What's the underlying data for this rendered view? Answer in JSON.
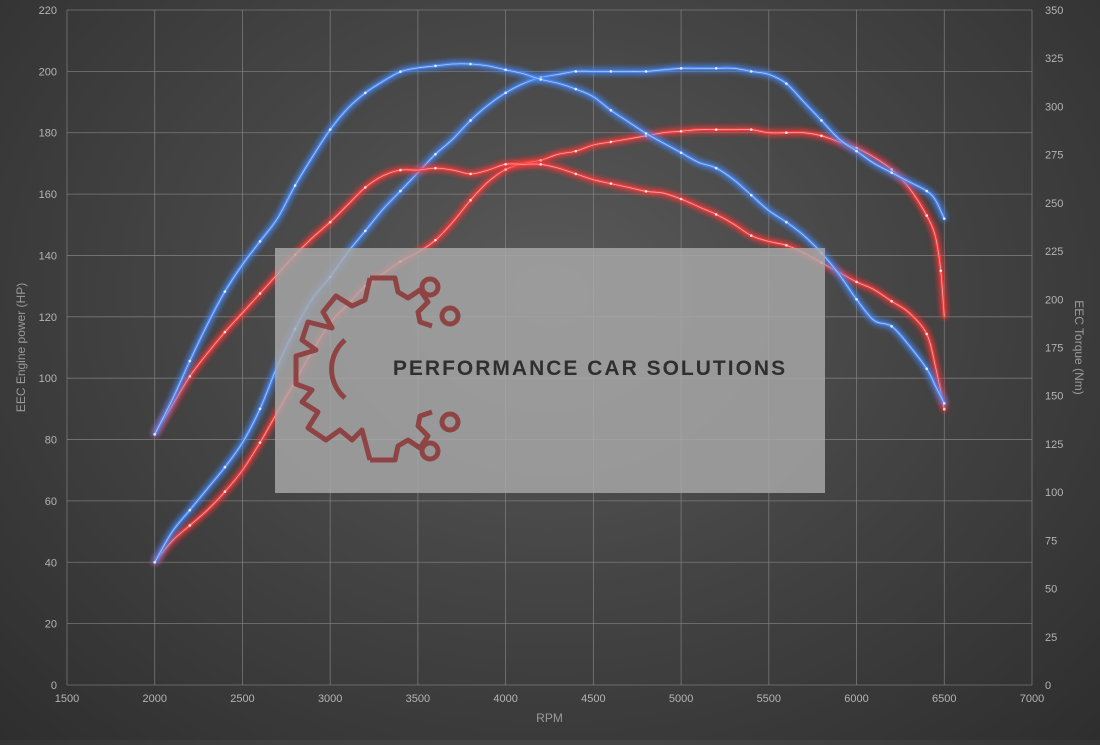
{
  "watermark": {
    "text": "PERFORMANCE CAR SOLUTIONS"
  },
  "chart_data": {
    "type": "line",
    "title": "",
    "xlabel": "RPM",
    "ylabel": "EEC Engine power (HP)",
    "y2label": "EEC Torque (Nm)",
    "xlim": [
      1500,
      7000
    ],
    "ylim": [
      0,
      220
    ],
    "y2lim": [
      0,
      350
    ],
    "x_ticks": [
      1500,
      2000,
      2500,
      3000,
      3500,
      4000,
      4500,
      5000,
      5500,
      6000,
      6500,
      7000
    ],
    "y_ticks": [
      0,
      20,
      40,
      60,
      80,
      100,
      120,
      140,
      160,
      180,
      200,
      220
    ],
    "y2_ticks": [
      0,
      25,
      50,
      75,
      100,
      125,
      150,
      175,
      200,
      225,
      250,
      275,
      300,
      325,
      350
    ],
    "grid": true,
    "legend": "none",
    "series": [
      {
        "color": "#ff3b3b",
        "axis": "left",
        "x": [
          2000,
          2100,
          2200,
          2300,
          2400,
          2500,
          2600,
          2700,
          2800,
          2900,
          3000,
          3100,
          3200,
          3300,
          3400,
          3500,
          3600,
          3700,
          3800,
          3900,
          4000,
          4100,
          4200,
          4300,
          4400,
          4500,
          4600,
          4700,
          4800,
          4900,
          5000,
          5100,
          5200,
          5300,
          5400,
          5500,
          5600,
          5700,
          5800,
          5900,
          6000,
          6100,
          6200,
          6300,
          6400,
          6450,
          6480,
          6500
        ],
        "values": [
          40,
          47,
          52,
          57,
          63,
          70,
          79,
          89,
          99,
          109,
          118,
          124,
          130,
          134,
          138,
          141,
          145,
          151,
          158,
          164,
          168,
          170,
          171,
          173,
          174,
          176,
          177,
          178,
          179,
          180,
          180.5,
          181,
          181,
          181,
          181,
          180,
          180,
          180,
          179,
          177,
          175,
          172,
          168,
          162,
          153,
          146,
          135,
          120
        ]
      },
      {
        "color": "#4a8cff",
        "axis": "left",
        "x": [
          2000,
          2100,
          2200,
          2300,
          2400,
          2500,
          2600,
          2700,
          2800,
          2900,
          3000,
          3100,
          3200,
          3300,
          3400,
          3500,
          3600,
          3700,
          3800,
          3900,
          4000,
          4100,
          4200,
          4300,
          4400,
          4500,
          4600,
          4700,
          4800,
          4900,
          5000,
          5100,
          5200,
          5300,
          5400,
          5500,
          5600,
          5700,
          5800,
          5900,
          6000,
          6100,
          6200,
          6300,
          6400,
          6450,
          6500
        ],
        "values": [
          40,
          50,
          57,
          64,
          71,
          79,
          90,
          104,
          116,
          126,
          133,
          141,
          148,
          155,
          161,
          167,
          173,
          178,
          184,
          189,
          193,
          196,
          198,
          199,
          200,
          200,
          200,
          200,
          200,
          200.5,
          201,
          201,
          201,
          201,
          200,
          199,
          196,
          190,
          184,
          178,
          174,
          170,
          167,
          164,
          161,
          158,
          152
        ]
      },
      {
        "color": "#ff3b3b",
        "axis": "right",
        "x": [
          2000,
          2100,
          2200,
          2300,
          2400,
          2500,
          2600,
          2700,
          2800,
          2900,
          3000,
          3100,
          3200,
          3300,
          3400,
          3500,
          3600,
          3700,
          3800,
          3900,
          4000,
          4100,
          4200,
          4300,
          4400,
          4500,
          4600,
          4700,
          4800,
          4900,
          5000,
          5100,
          5200,
          5300,
          5400,
          5500,
          5600,
          5700,
          5800,
          5900,
          6000,
          6100,
          6200,
          6300,
          6400,
          6450,
          6500
        ],
        "values": [
          130,
          145,
          160,
          172,
          183,
          193,
          203,
          213,
          223,
          232,
          240,
          249,
          258,
          264,
          267,
          267,
          268,
          267,
          265,
          267,
          270,
          270,
          270,
          268,
          265,
          262,
          260,
          258,
          256,
          255,
          252,
          248,
          244,
          239,
          233,
          230,
          228,
          224,
          219,
          214,
          209,
          205,
          199,
          193,
          182,
          165,
          143
        ]
      },
      {
        "color": "#4a8cff",
        "axis": "right",
        "x": [
          2000,
          2100,
          2200,
          2300,
          2400,
          2500,
          2600,
          2700,
          2800,
          2900,
          3000,
          3100,
          3200,
          3300,
          3400,
          3500,
          3600,
          3700,
          3800,
          3900,
          4000,
          4100,
          4200,
          4300,
          4400,
          4500,
          4600,
          4700,
          4800,
          4900,
          5000,
          5100,
          5200,
          5300,
          5400,
          5500,
          5600,
          5700,
          5800,
          5900,
          6000,
          6100,
          6200,
          6300,
          6400,
          6450,
          6500
        ],
        "values": [
          130,
          148,
          168,
          187,
          204,
          218,
          230,
          242,
          259,
          274,
          288,
          299,
          307,
          313,
          318,
          320,
          321,
          322,
          322,
          321,
          319,
          317,
          314,
          312,
          309,
          305,
          298,
          292,
          286,
          281,
          276,
          271,
          268,
          262,
          254,
          246,
          240,
          233,
          224,
          213,
          200,
          189,
          186,
          176,
          164,
          155,
          146
        ]
      }
    ]
  }
}
